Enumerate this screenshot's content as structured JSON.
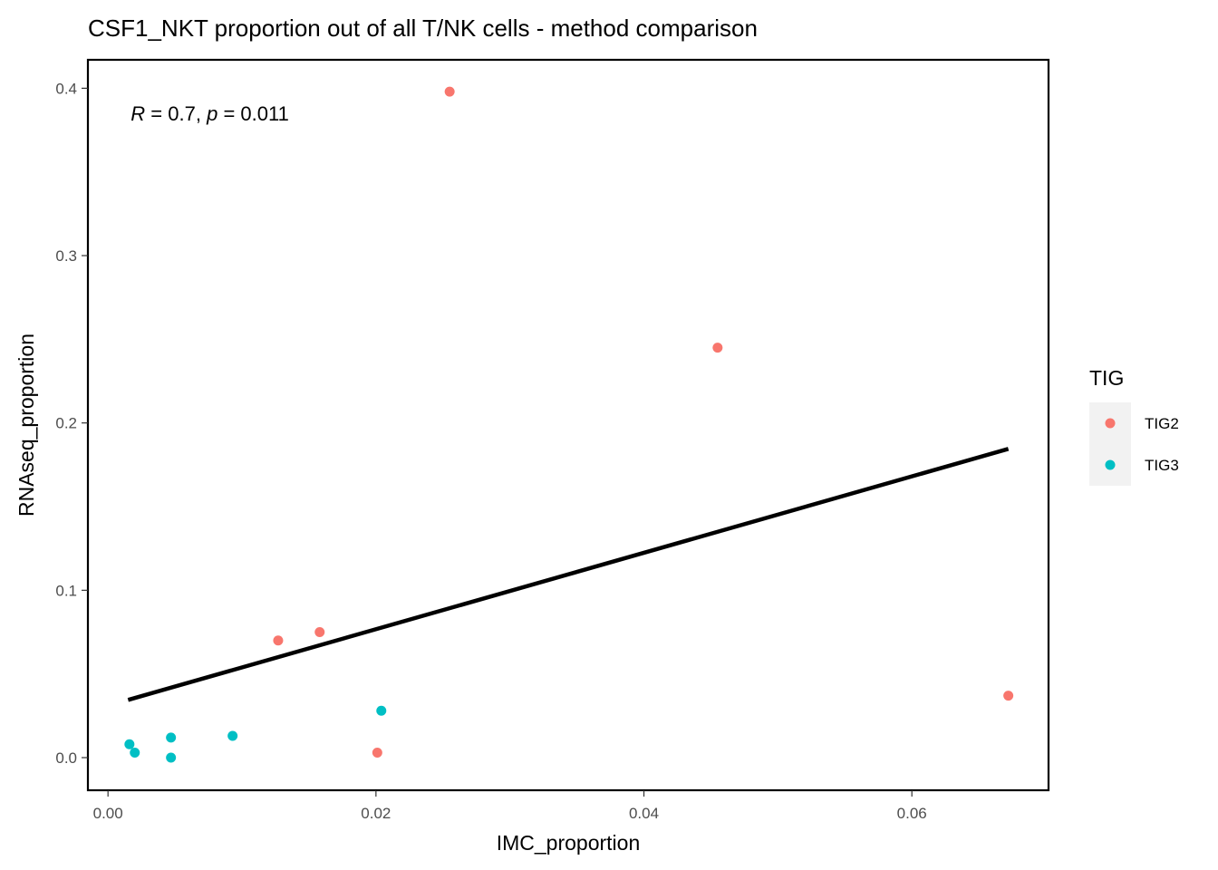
{
  "chart_data": {
    "type": "scatter",
    "title": "CSF1_NKT proportion out of all T/NK cells - method comparison",
    "xlabel": "IMC_proportion",
    "ylabel": "RNAseq_proportion",
    "xlim": [
      -0.0015,
      0.0702
    ],
    "ylim": [
      -0.0195,
      0.417
    ],
    "x_ticks": [
      0.0,
      0.02,
      0.04,
      0.06
    ],
    "x_tick_labels": [
      "0.00",
      "0.02",
      "0.04",
      "0.06"
    ],
    "y_ticks": [
      0.0,
      0.1,
      0.2,
      0.3,
      0.4
    ],
    "y_tick_labels": [
      "0.0",
      "0.1",
      "0.2",
      "0.3",
      "0.4"
    ],
    "grid": false,
    "legend": {
      "title": "TIG",
      "placement": "right",
      "entries": [
        {
          "label": "TIG2",
          "color": "#F8766D"
        },
        {
          "label": "TIG3",
          "color": "#00BFC4"
        }
      ]
    },
    "annotation": {
      "r_symbol": "R",
      "r_text": " = 0.7, ",
      "p_symbol": "p",
      "p_text": " = 0.011",
      "x": 0.0017,
      "y": 0.385
    },
    "regression_line": {
      "x": [
        0.0015,
        0.0672
      ],
      "y": [
        0.0345,
        0.1845
      ],
      "color": "#000000"
    },
    "series": [
      {
        "name": "TIG2",
        "color": "#F8766D",
        "points": [
          {
            "x": 0.0255,
            "y": 0.398
          },
          {
            "x": 0.0455,
            "y": 0.245
          },
          {
            "x": 0.0127,
            "y": 0.07
          },
          {
            "x": 0.0158,
            "y": 0.075
          },
          {
            "x": 0.0201,
            "y": 0.003
          },
          {
            "x": 0.0672,
            "y": 0.037
          }
        ]
      },
      {
        "name": "TIG3",
        "color": "#00BFC4",
        "points": [
          {
            "x": 0.0016,
            "y": 0.008
          },
          {
            "x": 0.002,
            "y": 0.003
          },
          {
            "x": 0.0047,
            "y": 0.012
          },
          {
            "x": 0.0047,
            "y": 0.0
          },
          {
            "x": 0.0093,
            "y": 0.013
          },
          {
            "x": 0.0204,
            "y": 0.028
          }
        ]
      }
    ]
  }
}
